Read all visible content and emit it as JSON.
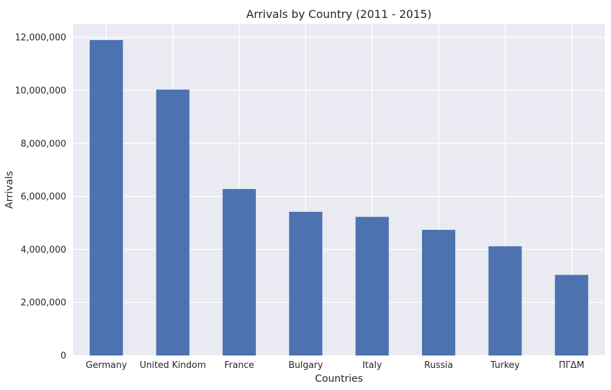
{
  "chart_data": {
    "type": "bar",
    "title": "Arrivals by Country (2011 - 2015)",
    "xlabel": "Countries",
    "ylabel": "Arrivals",
    "categories": [
      "Germany",
      "United Kindom",
      "France",
      "Bulgary",
      "Italy",
      "Russia",
      "Turkey",
      "ΠΓΔΜ"
    ],
    "values": [
      11900000,
      10030000,
      6280000,
      5420000,
      5230000,
      4740000,
      4120000,
      3040000
    ],
    "ylim": [
      0,
      12500000
    ],
    "yticks": [
      0,
      2000000,
      4000000,
      6000000,
      8000000,
      10000000,
      12000000
    ],
    "ytick_labels": [
      "0",
      "2,000,000",
      "4,000,000",
      "6,000,000",
      "8,000,000",
      "10,000,000",
      "12,000,000"
    ],
    "grid": true,
    "colors": {
      "bar": "#4c72b0",
      "plot_background": "#eaeaf2",
      "grid": "#ffffff"
    }
  }
}
